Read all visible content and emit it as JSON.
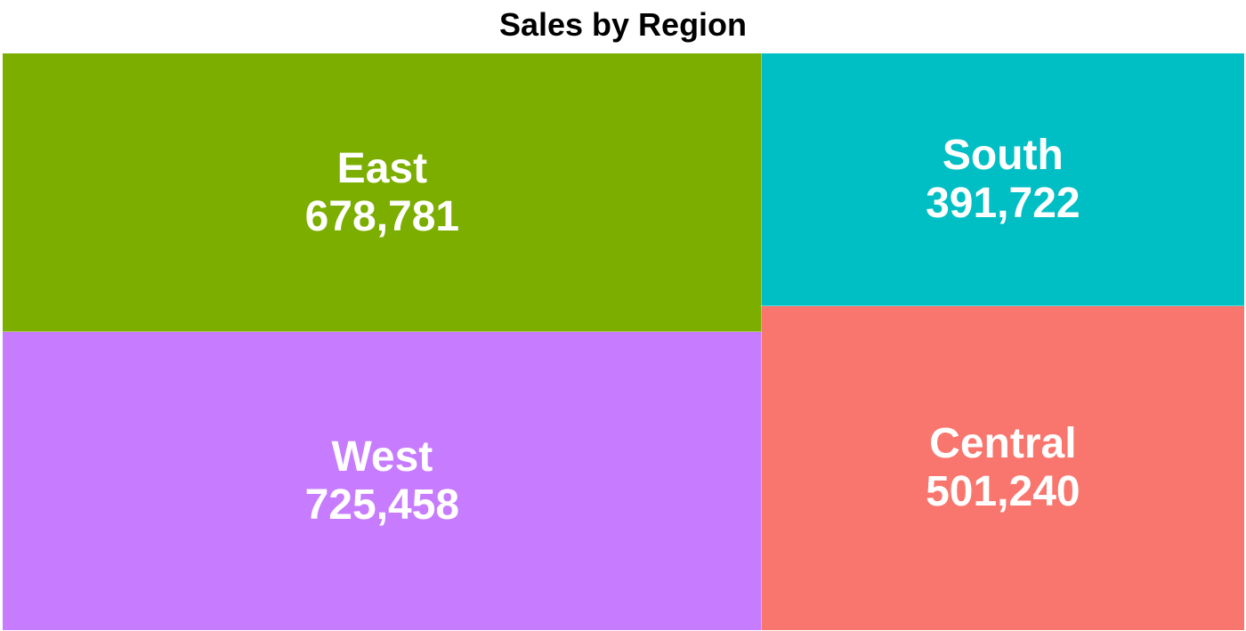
{
  "chart_data": {
    "type": "treemap",
    "title": "Sales by Region",
    "tiles": [
      {
        "label": "West",
        "value": 725458,
        "value_label": "725,458",
        "color": "#C77CFF"
      },
      {
        "label": "East",
        "value": 678781,
        "value_label": "678,781",
        "color": "#7CAE00"
      },
      {
        "label": "Central",
        "value": 501240,
        "value_label": "501,240",
        "color": "#F8766D"
      },
      {
        "label": "South",
        "value": 391722,
        "value_label": "391,722",
        "color": "#00BFC4"
      }
    ]
  }
}
